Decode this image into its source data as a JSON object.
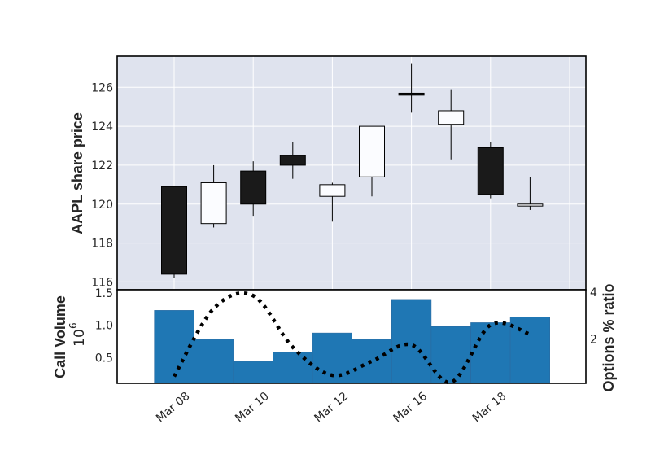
{
  "colors": {
    "panel_bg": "#dfe3ee",
    "grid": "#ffffff",
    "candle_down": "#1a1a1a",
    "candle_up": "#fbfcff",
    "volume_bar": "#1f77b4",
    "ratio_line": "#000000"
  },
  "chart_data": [
    {
      "type": "candlestick",
      "ylabel": "AAPL share price",
      "ylim": [
        115.6,
        127.6
      ],
      "yticks": [
        116,
        118,
        120,
        122,
        124,
        126
      ],
      "grid": true,
      "candles": [
        {
          "date": "2021-03-08",
          "open": 120.9,
          "high": 120.9,
          "low": 116.2,
          "close": 116.4
        },
        {
          "date": "2021-03-09",
          "open": 119.0,
          "high": 122.0,
          "low": 118.8,
          "close": 121.1
        },
        {
          "date": "2021-03-10",
          "open": 121.7,
          "high": 122.2,
          "low": 119.4,
          "close": 120.0
        },
        {
          "date": "2021-03-11",
          "open": 122.5,
          "high": 123.2,
          "low": 121.3,
          "close": 122.0
        },
        {
          "date": "2021-03-12",
          "open": 120.4,
          "high": 121.1,
          "low": 119.1,
          "close": 121.0
        },
        {
          "date": "2021-03-15",
          "open": 121.4,
          "high": 124.0,
          "low": 120.4,
          "close": 124.0
        },
        {
          "date": "2021-03-16",
          "open": 125.7,
          "high": 127.2,
          "low": 124.7,
          "close": 125.6
        },
        {
          "date": "2021-03-17",
          "open": 124.1,
          "high": 125.9,
          "low": 122.3,
          "close": 124.8
        },
        {
          "date": "2021-03-18",
          "open": 122.9,
          "high": 123.2,
          "low": 120.3,
          "close": 120.5
        },
        {
          "date": "2021-03-19",
          "open": 119.9,
          "high": 121.4,
          "low": 119.7,
          "close": 120.0
        }
      ]
    },
    {
      "type": "bar+line",
      "ylabel": "Call Volume",
      "y_exponent": "10",
      "y_exponent_power": "6",
      "ylim": [
        0.1,
        1.55
      ],
      "yticks": [
        "0.5",
        "1.0",
        "1.5"
      ],
      "y2label": "Options % ratio",
      "y2lim": [
        0.0,
        4.0
      ],
      "y2ticks": [
        "2",
        "4"
      ],
      "grid": false,
      "series": [
        {
          "type": "bar",
          "values": [
            1.23,
            0.78,
            0.44,
            0.58,
            0.88,
            0.78,
            1.4,
            0.98,
            1.04,
            1.13
          ]
        },
        {
          "type": "line",
          "style": "dotted",
          "values": [
            0.4,
            3.3,
            3.85,
            1.65,
            0.45,
            1.05,
            1.75,
            0.15,
            2.6,
            2.2
          ]
        }
      ]
    }
  ],
  "xaxis": {
    "ticks": [
      {
        "label": "Mar 08",
        "index": 0
      },
      {
        "label": "Mar 10",
        "index": 2
      },
      {
        "label": "Mar 12",
        "index": 4
      },
      {
        "label": "Mar 16",
        "index": 6
      },
      {
        "label": "Mar 18",
        "index": 8
      }
    ]
  }
}
